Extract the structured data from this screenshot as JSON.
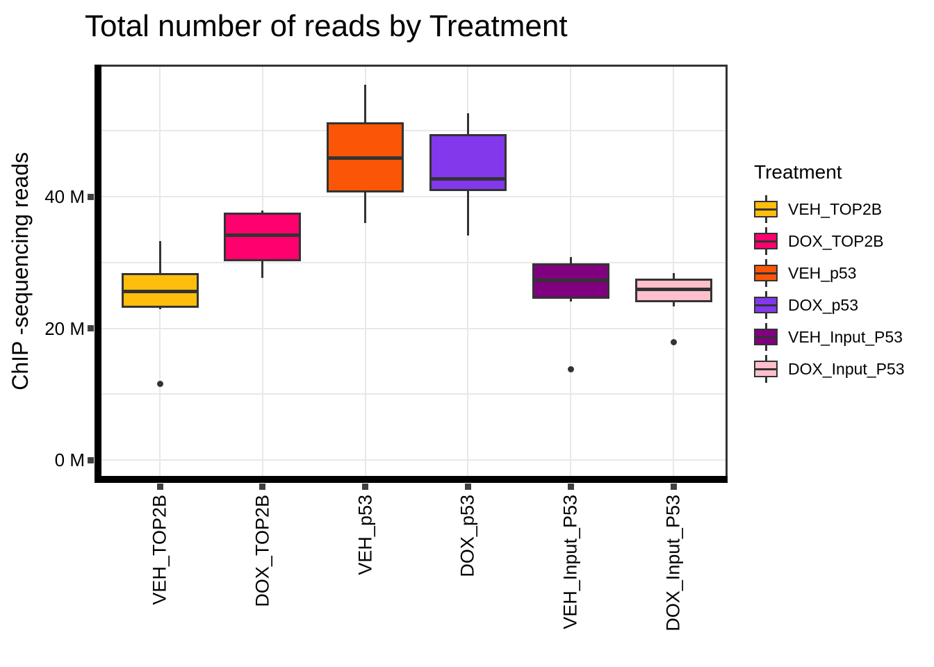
{
  "chart_data": {
    "type": "boxplot",
    "title": "Total number of reads by Treatment",
    "xlabel": "",
    "ylabel": "ChIP -sequencing reads",
    "y_unit": "M reads (millions)",
    "ylim": [
      -2.5,
      60
    ],
    "grid": true,
    "y_ticks": [
      {
        "value": 0,
        "label": "0 M"
      },
      {
        "value": 20,
        "label": "20 M"
      },
      {
        "value": 40,
        "label": "40 M"
      }
    ],
    "y_minor_gridlines": [
      10,
      30,
      50
    ],
    "categories": [
      "VEH_TOP2B",
      "DOX_TOP2B",
      "VEH_p53",
      "DOX_p53",
      "VEH_Input_P53",
      "DOX_Input_P53"
    ],
    "series": [
      {
        "name": "VEH_TOP2B",
        "color": "#FFBE0B",
        "whisker_low": 22.9,
        "q1": 23.1,
        "median": 25.6,
        "q3": 28.4,
        "whisker_high": 33.2,
        "outliers": [
          11.6
        ]
      },
      {
        "name": "DOX_TOP2B",
        "color": "#FF006E",
        "whisker_low": 27.6,
        "q1": 30.2,
        "median": 34.1,
        "q3": 37.6,
        "whisker_high": 37.9,
        "outliers": []
      },
      {
        "name": "VEH_p53",
        "color": "#FB5607",
        "whisker_low": 36.0,
        "q1": 40.6,
        "median": 45.9,
        "q3": 51.3,
        "whisker_high": 57.0,
        "outliers": []
      },
      {
        "name": "DOX_p53",
        "color": "#8338EC",
        "whisker_low": 34.1,
        "q1": 40.8,
        "median": 42.7,
        "q3": 49.5,
        "whisker_high": 52.7,
        "outliers": []
      },
      {
        "name": "VEH_Input_P53",
        "color": "#800080",
        "whisker_low": 24.1,
        "q1": 24.5,
        "median": 27.3,
        "q3": 29.9,
        "whisker_high": 30.8,
        "outliers": [
          13.8
        ]
      },
      {
        "name": "DOX_Input_P53",
        "color": "#FFC0CB",
        "whisker_low": 23.3,
        "q1": 24.0,
        "median": 25.9,
        "q3": 27.5,
        "whisker_high": 28.4,
        "outliers": [
          17.9
        ]
      }
    ],
    "legend": {
      "title": "Treatment",
      "position": "right",
      "entries": [
        {
          "label": "VEH_TOP2B",
          "color": "#FFBE0B"
        },
        {
          "label": "DOX_TOP2B",
          "color": "#FF006E"
        },
        {
          "label": "VEH_p53",
          "color": "#FB5607"
        },
        {
          "label": "DOX_p53",
          "color": "#8338EC"
        },
        {
          "label": "VEH_Input_P53",
          "color": "#800080"
        },
        {
          "label": "DOX_Input_P53",
          "color": "#FFC0CB"
        }
      ]
    },
    "style": {
      "box_border_color": "#333333",
      "gridline_color": "#e8e8e8",
      "axis_spine_color": "#000000"
    }
  }
}
